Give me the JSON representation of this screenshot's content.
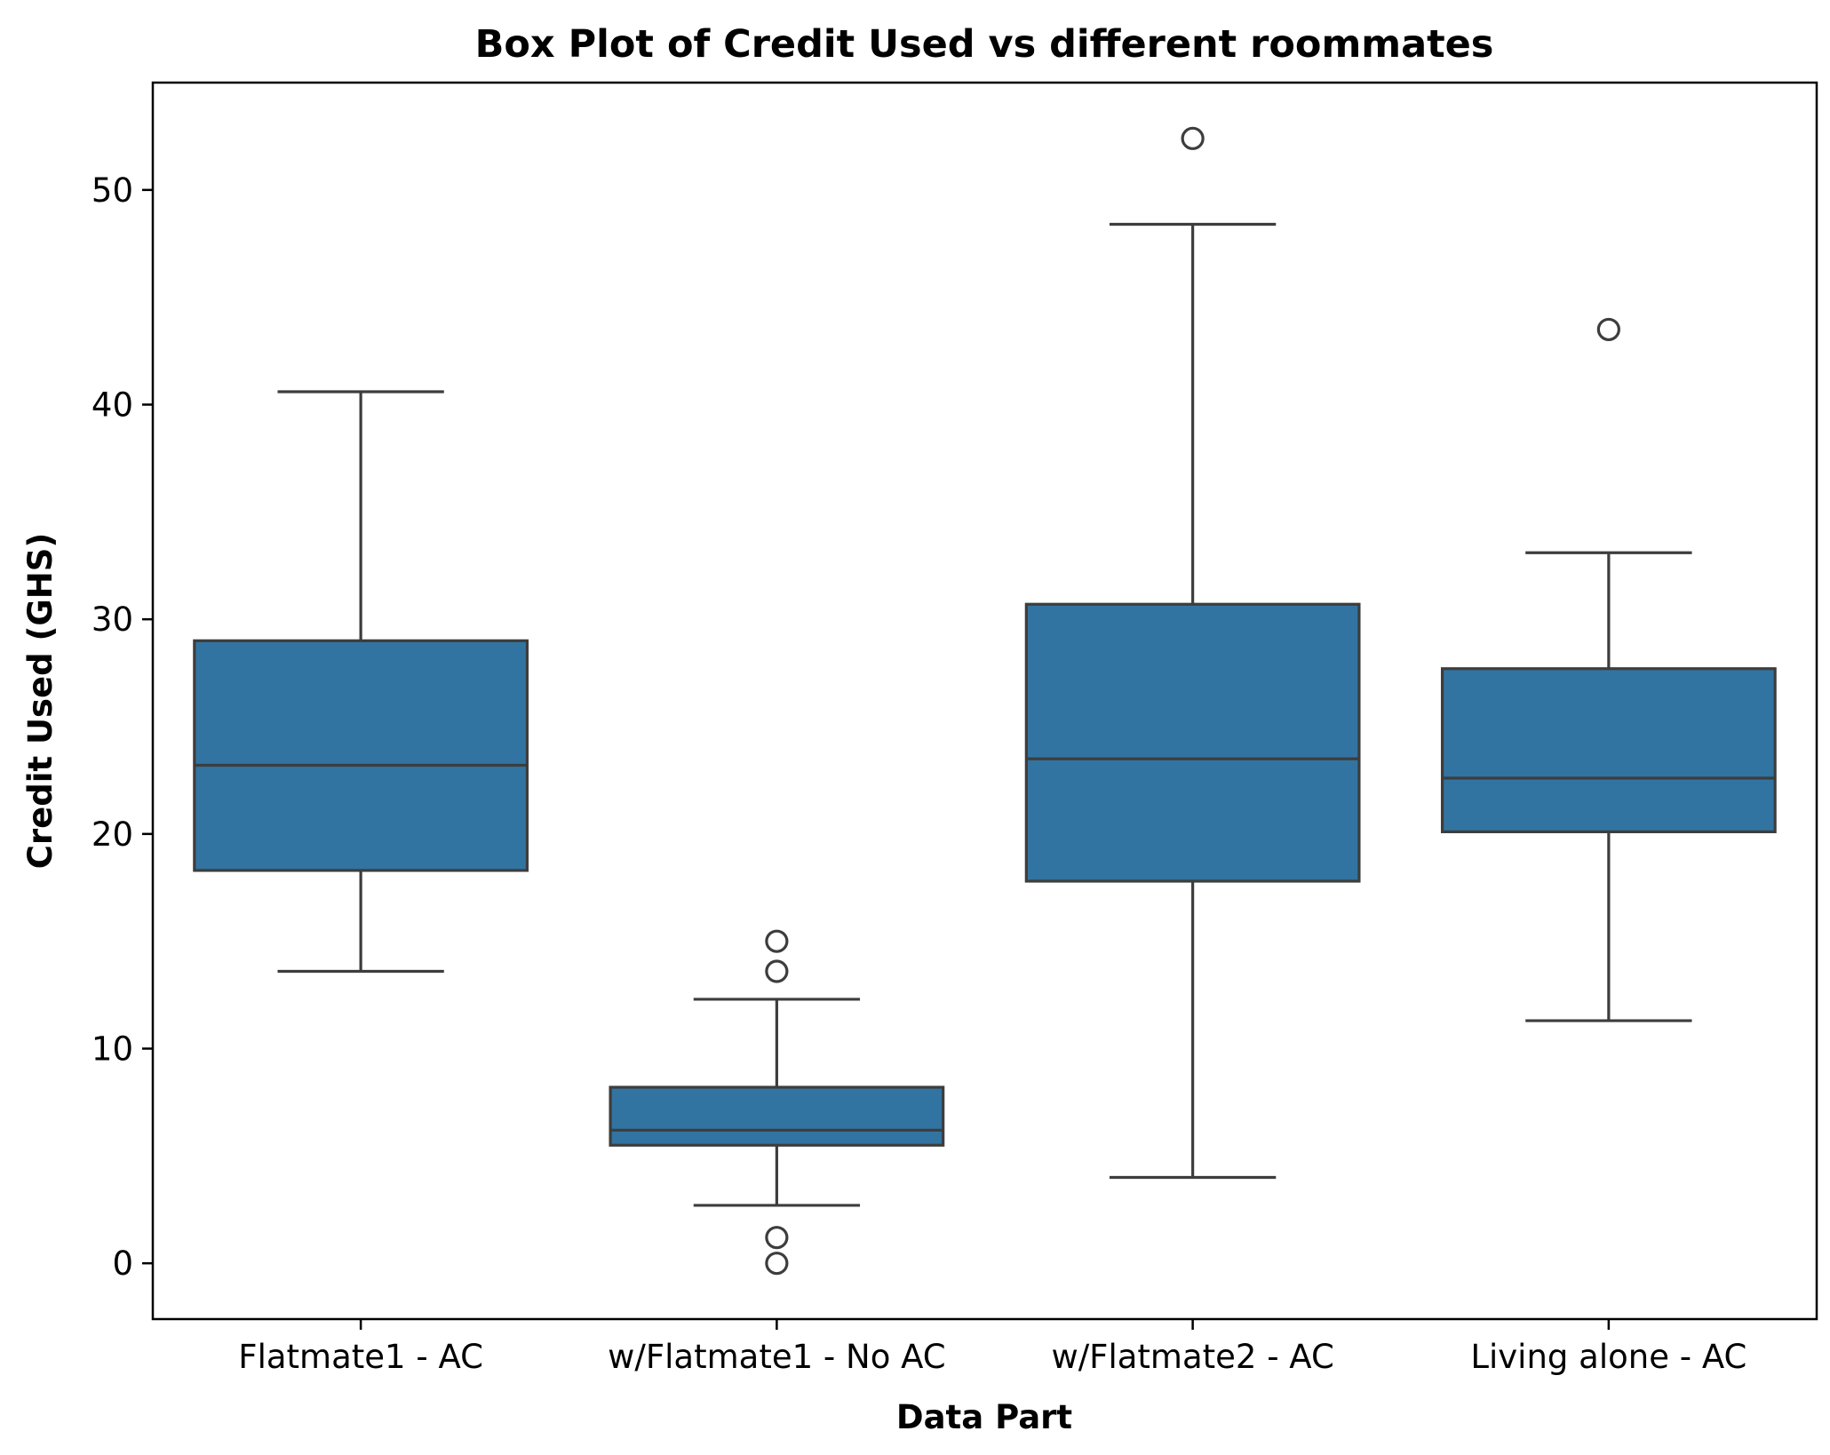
{
  "chart_data": {
    "type": "box",
    "title": "Box Plot of Credit Used vs different roommates",
    "xlabel": "Data Part",
    "ylabel": "Credit Used (GHS)",
    "ylim": [
      -2.6,
      55.0
    ],
    "yticks": [
      0,
      10,
      20,
      30,
      40,
      50
    ],
    "ytick_labels": [
      "0",
      "10",
      "20",
      "30",
      "40",
      "50"
    ],
    "grid": false,
    "box_color": "#3274a1",
    "line_color": "#3d3d3d",
    "categories": [
      "Flatmate1 - AC",
      "w/Flatmate1 - No AC",
      "w/Flatmate2 - AC",
      "Living alone - AC"
    ],
    "boxes": [
      {
        "category": "Flatmate1 - AC",
        "whisker_low": 13.6,
        "q1": 18.3,
        "median": 23.2,
        "q3": 29.0,
        "whisker_high": 40.6,
        "outliers": []
      },
      {
        "category": "w/Flatmate1 - No AC",
        "whisker_low": 2.7,
        "q1": 5.5,
        "median": 6.2,
        "q3": 8.2,
        "whisker_high": 12.3,
        "outliers": [
          15.0,
          13.6,
          1.2,
          0.0
        ]
      },
      {
        "category": "w/Flatmate2 - AC",
        "whisker_low": 4.0,
        "q1": 17.8,
        "median": 23.5,
        "q3": 30.7,
        "whisker_high": 48.4,
        "outliers": [
          52.4
        ]
      },
      {
        "category": "Living alone - AC",
        "whisker_low": 11.3,
        "q1": 20.1,
        "median": 22.6,
        "q3": 27.7,
        "whisker_high": 33.1,
        "outliers": [
          43.5
        ]
      }
    ]
  }
}
